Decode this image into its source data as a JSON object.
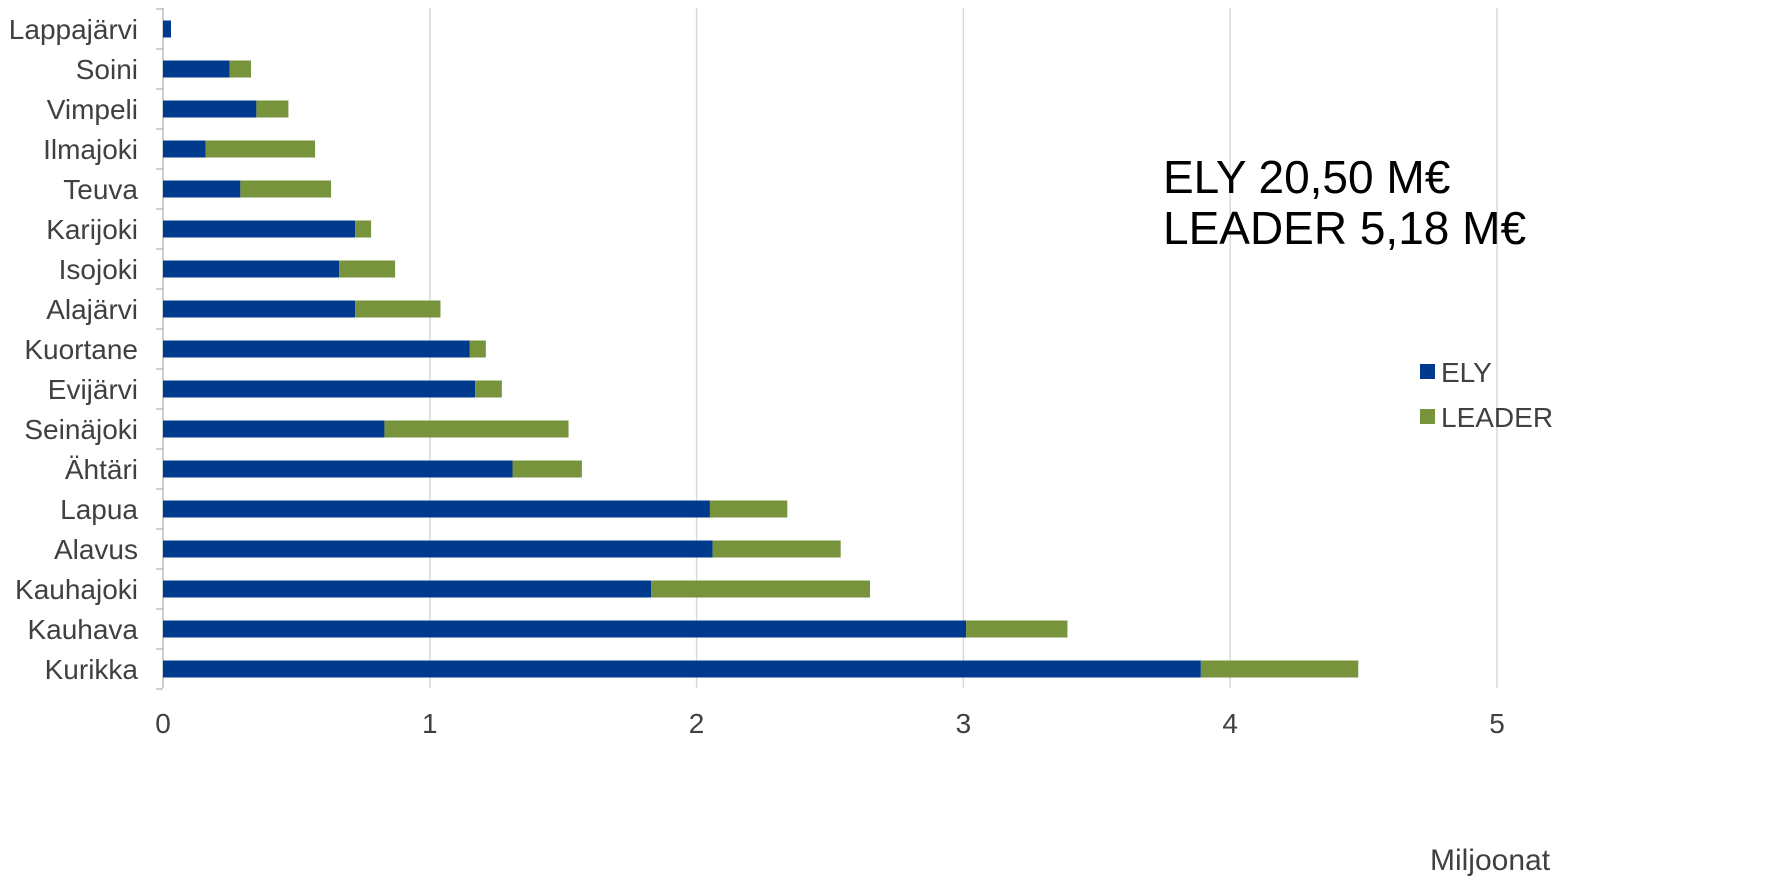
{
  "chart_data": {
    "type": "bar",
    "orientation": "horizontal",
    "stacked": true,
    "categories": [
      "Lappajärvi",
      "Soini",
      "Vimpeli",
      "Ilmajoki",
      "Teuva",
      "Karijoki",
      "Isojoki",
      "Alajärvi",
      "Kuortane",
      "Evijärvi",
      "Seinäjoki",
      "Ähtäri",
      "Lapua",
      "Alavus",
      "Kauhajoki",
      "Kauhava",
      "Kurikka"
    ],
    "series": [
      {
        "name": "ELY",
        "color": "#003a8c",
        "values": [
          0.03,
          0.25,
          0.35,
          0.16,
          0.29,
          0.72,
          0.66,
          0.72,
          1.15,
          1.17,
          0.83,
          1.31,
          2.05,
          2.06,
          1.83,
          3.01,
          3.89
        ]
      },
      {
        "name": "LEADER",
        "color": "#77933c",
        "values": [
          0.0,
          0.08,
          0.12,
          0.41,
          0.34,
          0.06,
          0.21,
          0.32,
          0.06,
          0.1,
          0.69,
          0.26,
          0.29,
          0.48,
          0.82,
          0.38,
          0.59
        ]
      }
    ],
    "xlim": [
      0,
      5
    ],
    "xticks": [
      "0",
      "1",
      "2",
      "3",
      "4",
      "5"
    ],
    "xlabel": "Miljoonat",
    "ylabel": "",
    "title": "",
    "grid": "vertical",
    "legend_position": "right",
    "annotations": [
      "ELY 20,50 M€",
      "LEADER 5,18 M€"
    ],
    "gridline_color": "#d9d9d9",
    "axis_color": "#bfbfbf"
  }
}
